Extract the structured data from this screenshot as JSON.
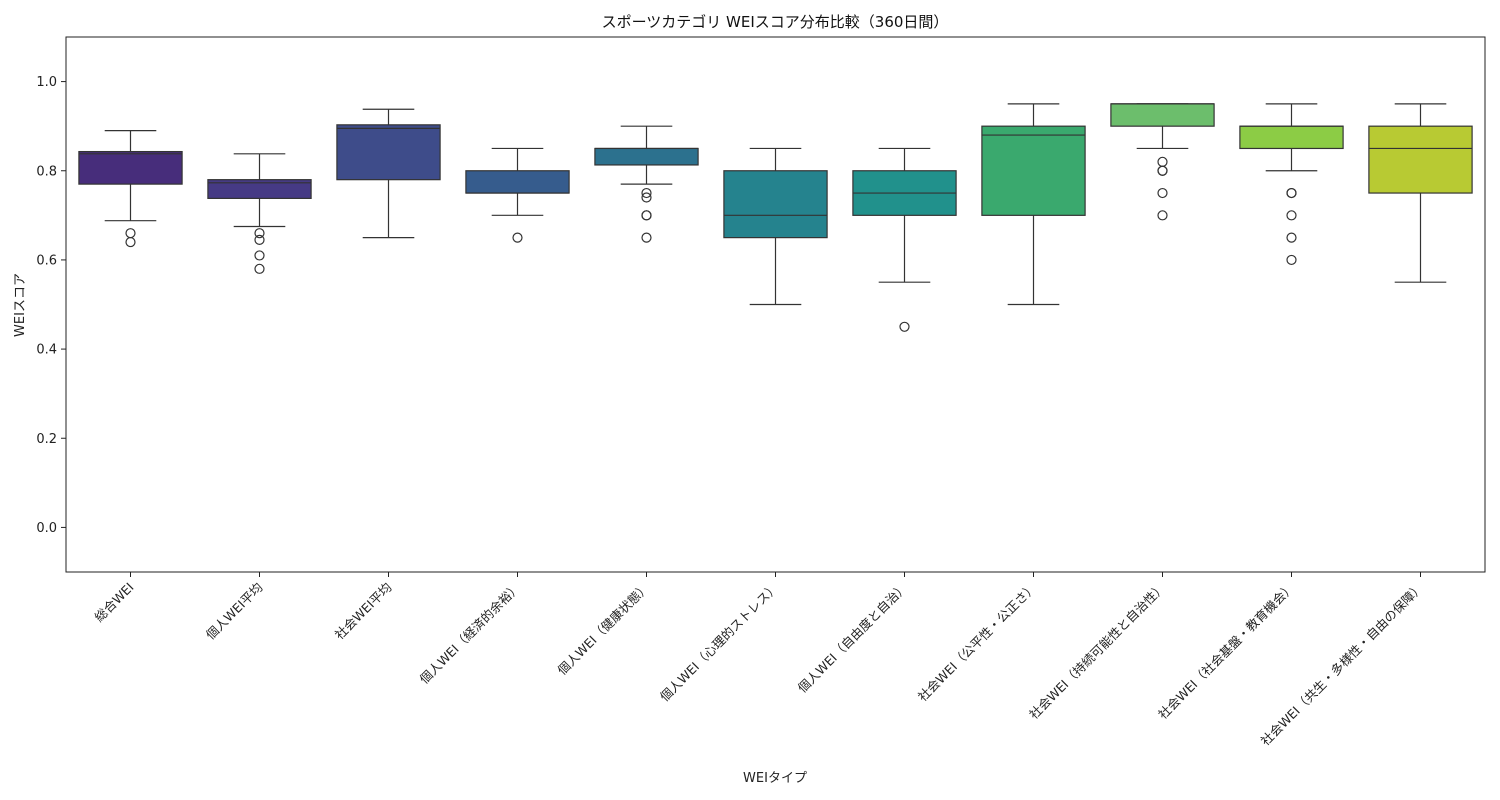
{
  "chart_data": {
    "type": "box",
    "title": "スポーツカテゴリ WEIスコア分布比較（360日間）",
    "xlabel": "WEIタイプ",
    "ylabel": "WEIスコア",
    "ylim": [
      -0.1,
      1.1
    ],
    "yticks": [
      0.0,
      0.2,
      0.4,
      0.6,
      0.8,
      1.0
    ],
    "ytick_labels": [
      "0.0",
      "0.2",
      "0.4",
      "0.6",
      "0.8",
      "1.0"
    ],
    "grid": false,
    "categories": [
      "総合WEI",
      "個人WEI平均",
      "社会WEI平均",
      "個人WEI（経済的余裕）",
      "個人WEI（健康状態）",
      "個人WEI（心理的ストレス）",
      "個人WEI（自由度と自治）",
      "社会WEI（公平性・公正さ）",
      "社会WEI（持続可能性と自治性）",
      "社会WEI（社会基盤・教育機会）",
      "社会WEI（共生・多様性・自由の保障）"
    ],
    "boxes": [
      {
        "whisker_low": 0.688,
        "q1": 0.77,
        "median": 0.838,
        "q3": 0.843,
        "whisker_high": 0.89,
        "outliers": [
          0.66,
          0.64
        ],
        "color": "#472d7b"
      },
      {
        "whisker_low": 0.675,
        "q1": 0.738,
        "median": 0.773,
        "q3": 0.78,
        "whisker_high": 0.838,
        "outliers": [
          0.66,
          0.645,
          0.61,
          0.58
        ],
        "color": "#463a85"
      },
      {
        "whisker_low": 0.65,
        "q1": 0.78,
        "median": 0.895,
        "q3": 0.903,
        "whisker_high": 0.938,
        "outliers": [],
        "color": "#3e4c8a"
      },
      {
        "whisker_low": 0.7,
        "q1": 0.75,
        "median": 0.75,
        "q3": 0.8,
        "whisker_high": 0.85,
        "outliers": [
          0.65
        ],
        "color": "#365c8d"
      },
      {
        "whisker_low": 0.77,
        "q1": 0.813,
        "median": 0.85,
        "q3": 0.85,
        "whisker_high": 0.9,
        "outliers": [
          0.75,
          0.74,
          0.7,
          0.7,
          0.65
        ],
        "color": "#2c718e"
      },
      {
        "whisker_low": 0.5,
        "q1": 0.65,
        "median": 0.7,
        "q3": 0.8,
        "whisker_high": 0.85,
        "outliers": [],
        "color": "#25838e"
      },
      {
        "whisker_low": 0.55,
        "q1": 0.7,
        "median": 0.75,
        "q3": 0.8,
        "whisker_high": 0.85,
        "outliers": [
          0.45
        ],
        "color": "#21918c"
      },
      {
        "whisker_low": 0.5,
        "q1": 0.7,
        "median": 0.88,
        "q3": 0.9,
        "whisker_high": 0.95,
        "outliers": [],
        "color": "#3aa96e"
      },
      {
        "whisker_low": 0.85,
        "q1": 0.9,
        "median": 0.95,
        "q3": 0.95,
        "whisker_high": 0.95,
        "outliers": [
          0.82,
          0.8,
          0.8,
          0.75,
          0.7
        ],
        "color": "#6cbe6c"
      },
      {
        "whisker_low": 0.8,
        "q1": 0.85,
        "median": 0.9,
        "q3": 0.9,
        "whisker_high": 0.95,
        "outliers": [
          0.75,
          0.75,
          0.7,
          0.65,
          0.6
        ],
        "color": "#8ccc45"
      },
      {
        "whisker_low": 0.55,
        "q1": 0.75,
        "median": 0.85,
        "q3": 0.9,
        "whisker_high": 0.95,
        "outliers": [],
        "color": "#b8ca33"
      }
    ]
  }
}
